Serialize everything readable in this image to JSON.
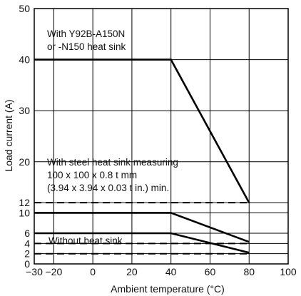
{
  "chart_data": {
    "type": "line",
    "xlabel": "Ambient temperature (°C)",
    "ylabel": "Load current (A)",
    "xlim": [
      -30,
      100
    ],
    "ylim": [
      0,
      50
    ],
    "x_ticks": [
      "−30",
      "−20",
      "0",
      "20",
      "40",
      "60",
      "80",
      "100"
    ],
    "y_ticks": [
      "0",
      "2",
      "4",
      "6",
      "10",
      "12",
      "20",
      "30",
      "40",
      "50"
    ],
    "grid": true,
    "series": [
      {
        "style": "solid",
        "x": [
          -30,
          40,
          80
        ],
        "y": [
          40,
          40,
          12
        ]
      },
      {
        "style": "solid",
        "x": [
          -30,
          40,
          80
        ],
        "y": [
          10,
          10,
          4.3
        ]
      },
      {
        "style": "solid",
        "x": [
          -30,
          40,
          80
        ],
        "y": [
          6,
          6,
          2.2
        ]
      },
      {
        "style": "dashed",
        "x": [
          -30,
          80
        ],
        "y": [
          12,
          12
        ]
      },
      {
        "style": "dashed",
        "x": [
          -30,
          80
        ],
        "y": [
          4,
          4
        ]
      },
      {
        "style": "dashed",
        "x": [
          -30,
          80
        ],
        "y": [
          2,
          2
        ]
      }
    ],
    "annotations": [
      {
        "lines": [
          "With Y92B-A150N",
          "or -N150 heat sink"
        ]
      },
      {
        "lines": [
          "With steel heat sink measuring",
          "100 x 100 x 0.8 t mm",
          "(3.94 x 3.94 x 0.03 t in.) min."
        ]
      },
      {
        "lines": [
          "Without heat sink"
        ]
      }
    ]
  }
}
